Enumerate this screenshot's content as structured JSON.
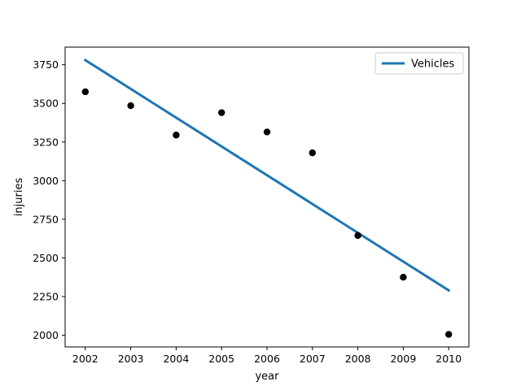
{
  "chart_data": {
    "type": "scatter",
    "title": "",
    "xlabel": "year",
    "ylabel": "injuries",
    "xlim": [
      1961.6,
      2010.4
    ],
    "ylim": [
      1924,
      3864
    ],
    "xticks": [
      2002,
      2003,
      2004,
      2005,
      2006,
      2007,
      2008,
      2009,
      2010
    ],
    "yticks": [
      2000,
      2250,
      2500,
      2750,
      3000,
      3250,
      3500,
      3750
    ],
    "grid": false,
    "legend_position": "top-right",
    "series": [
      {
        "name": "",
        "type": "scatter",
        "color": "#000000",
        "x": [
          2002,
          2003,
          2004,
          2005,
          2006,
          2007,
          2008,
          2009,
          2010
        ],
        "y": [
          3575,
          3485,
          3295,
          3440,
          3315,
          3180,
          2645,
          2375,
          2005
        ]
      },
      {
        "name": "Vehicles",
        "type": "line",
        "color": "#1f77b4",
        "x": [
          2002,
          2010
        ],
        "y": [
          3780,
          2290
        ]
      }
    ]
  }
}
